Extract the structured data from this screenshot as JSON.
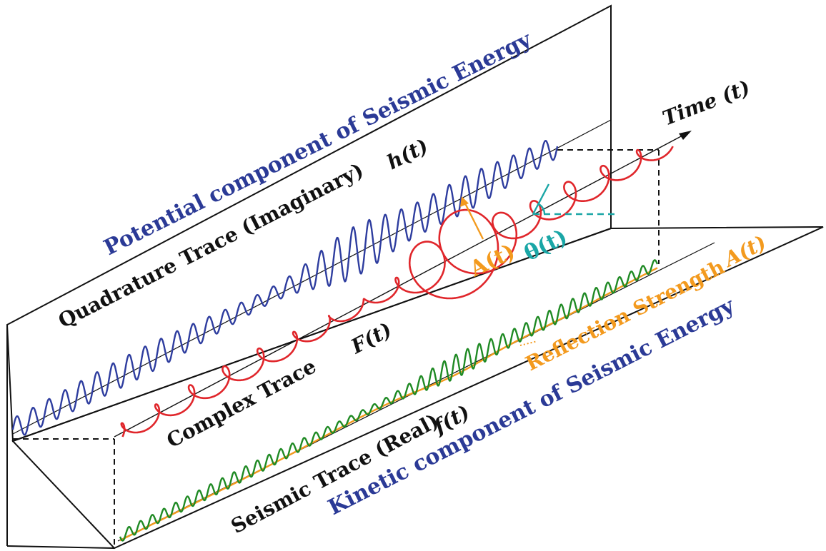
{
  "labels": {
    "potential": "Potential component of Seismic Energy",
    "quadrature": "Quadrature Trace (Imaginary)",
    "h": "h(t)",
    "time": "Time (t)",
    "complex": "Complex Trace",
    "F": "F(t)",
    "A_circle": "A(t)",
    "theta": "θ(t)",
    "reflection": "Reflection Strength",
    "A_reflection": "A(t)",
    "seismic": "Seismic Trace (Real)",
    "f": "f(t)",
    "kinetic": "Kinetic component of Seismic Energy"
  },
  "colors": {
    "frame": "#111111",
    "quadrature_trace": "#2e3d9f",
    "complex_trace": "#e0262b",
    "seismic_trace": "#1f8a24",
    "envelope": "#f39a1e",
    "phase": "#1aa6a6",
    "blue_text": "#2b3a96",
    "orange_text": "#f39a1e"
  }
}
